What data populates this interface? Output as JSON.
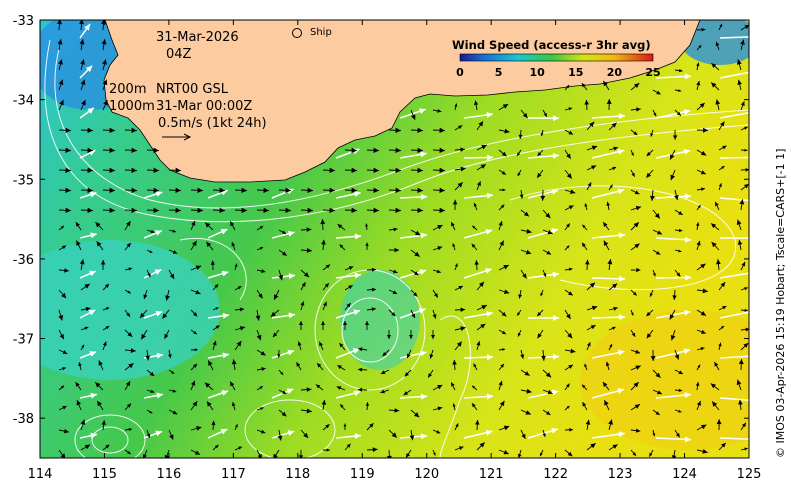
{
  "map": {
    "lon_ticks": [
      "114",
      "115",
      "116",
      "117",
      "118",
      "119",
      "120",
      "121",
      "122",
      "123",
      "124",
      "125"
    ],
    "lat_ticks": [
      "-33",
      "-34",
      "-35",
      "-36",
      "-37",
      "-38"
    ],
    "lon_range": [
      114,
      125
    ],
    "lat_range": [
      -38.5,
      -33
    ]
  },
  "annotations": {
    "date": "31-Mar-2026",
    "time": "04Z",
    "contour_200": "200m",
    "contour_1000": "1000m",
    "product": "NRT00 GSL",
    "product_time": "31-Mar 00:00Z",
    "scale_label": "0.5m/s (1kt 24h)",
    "ship_label": "Ship"
  },
  "colorbar": {
    "title": "Wind Speed (access-r 3hr avg)",
    "ticks": [
      "0",
      "5",
      "10",
      "15",
      "20",
      "25"
    ],
    "range": [
      0,
      25
    ]
  },
  "credit": "© IMOS 03-Apr-2026 15:19 Hobart; Tscale=CARS+[-1 1]",
  "colors": {
    "land": "#fccb9f",
    "ocean_cyan": "#3fd0c8",
    "ocean_green": "#3bc85a",
    "ocean_yellow": "#d8e419",
    "arrow_wind": "#ffffff",
    "arrow_current": "#000000"
  }
}
